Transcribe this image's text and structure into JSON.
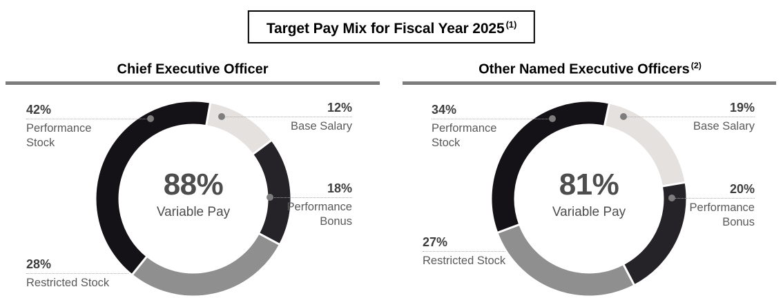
{
  "title": {
    "text": "Target Pay Mix for Fiscal Year 2025",
    "superscript": "(1)"
  },
  "chart_data": [
    {
      "type": "donut",
      "heading": "Chief Executive Officer",
      "heading_superscript": "",
      "center_value": "88%",
      "center_label": "Variable Pay",
      "start_angle_deg": 10,
      "segments": [
        {
          "label": "Base Salary",
          "value_pct": 12,
          "color": "#e4e1de"
        },
        {
          "label": "Performance Bonus",
          "value_pct": 18,
          "color": "#252228"
        },
        {
          "label": "Restricted Stock",
          "value_pct": 28,
          "color": "#8f8f8f"
        },
        {
          "label": "Performance Stock",
          "value_pct": 42,
          "color": "#141216"
        }
      ]
    },
    {
      "type": "donut",
      "heading": "Other Named Executive Officers",
      "heading_superscript": "(2)",
      "center_value": "81%",
      "center_label": "Variable Pay",
      "start_angle_deg": 12,
      "segments": [
        {
          "label": "Base Salary",
          "value_pct": 19,
          "color": "#e4e1de"
        },
        {
          "label": "Performance Bonus",
          "value_pct": 20,
          "color": "#252228"
        },
        {
          "label": "Restricted Stock",
          "value_pct": 27,
          "color": "#8f8f8f"
        },
        {
          "label": "Performance Stock",
          "value_pct": 34,
          "color": "#141216"
        }
      ]
    }
  ],
  "colors": {
    "heading_rule": "#7c7c7c",
    "leader_line": "#a8a8a8",
    "marker_dot": "#7d7d7d",
    "center_text": "#4d4d4d",
    "callout_value": "#3d3d3d",
    "callout_label": "#595959",
    "title_border": "#000000"
  }
}
